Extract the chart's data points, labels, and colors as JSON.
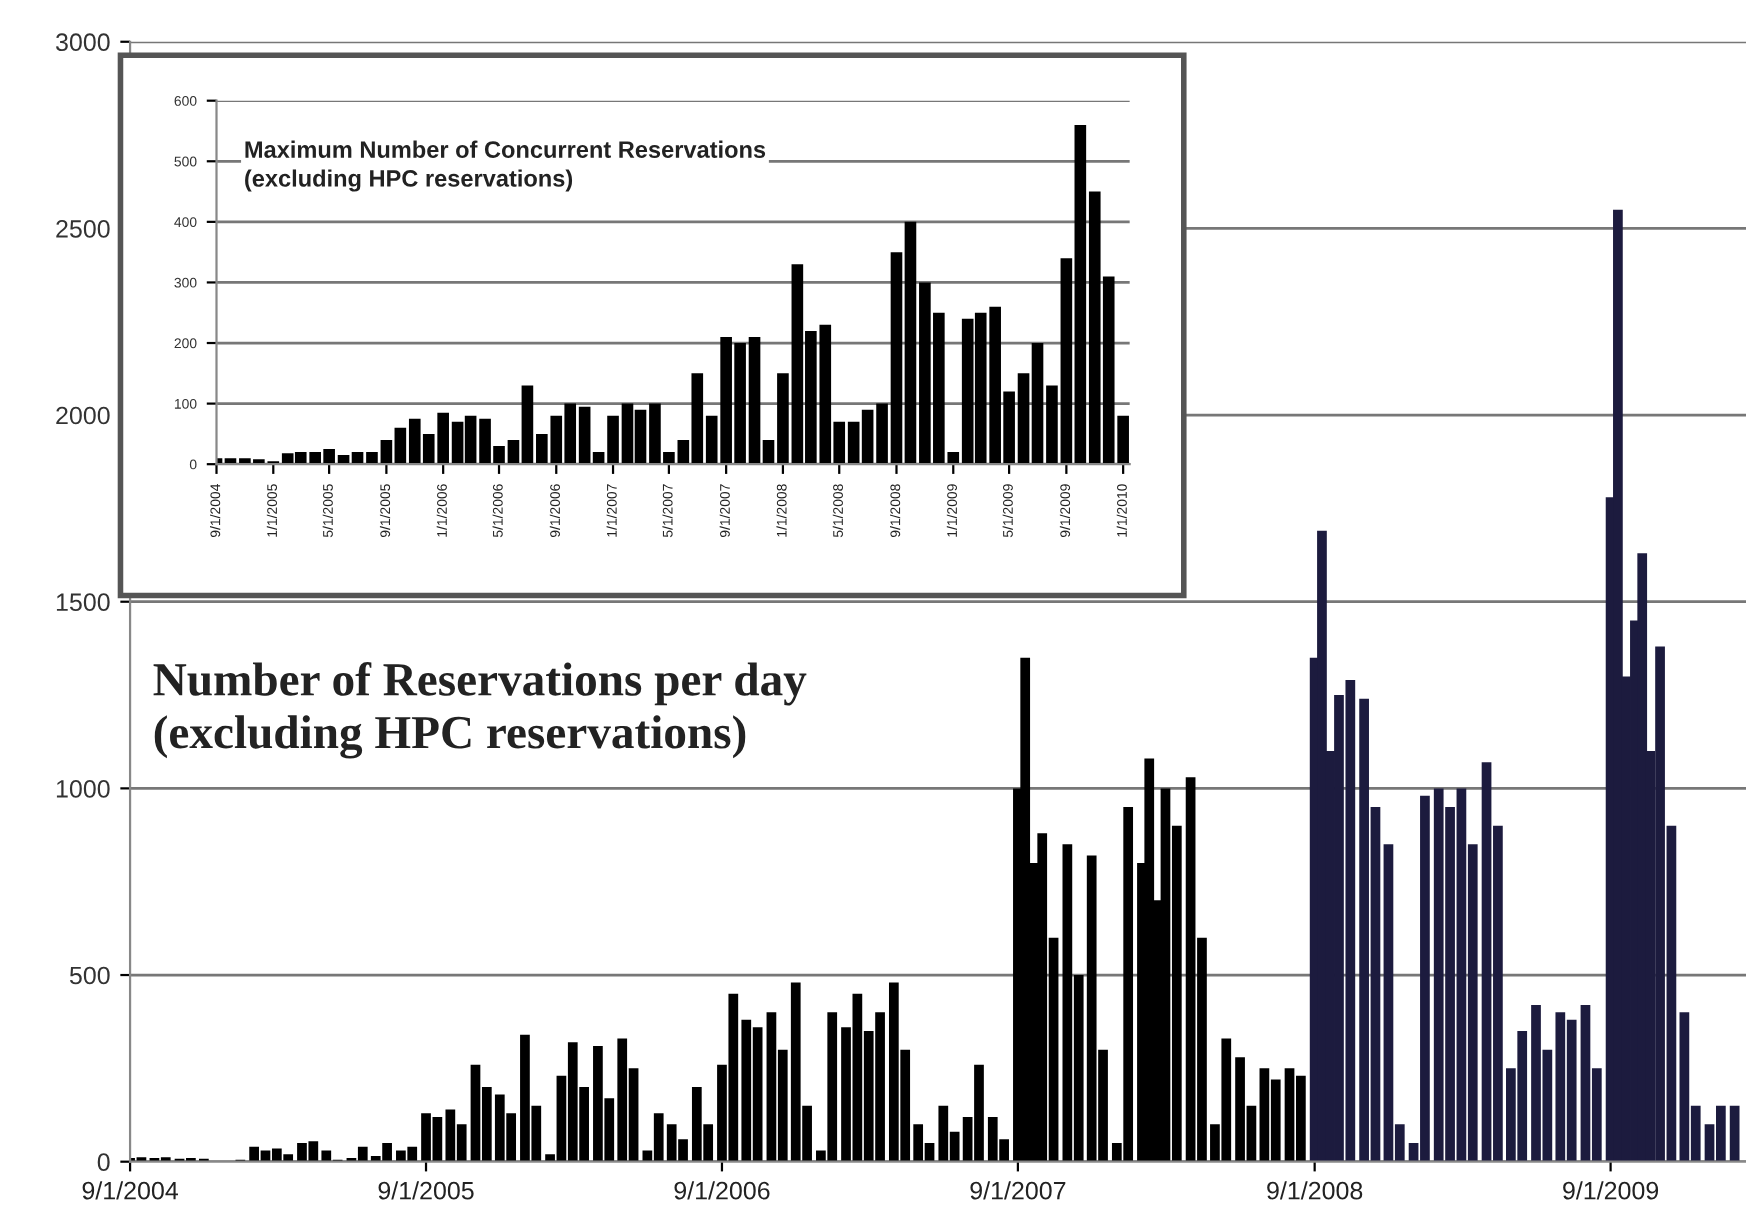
{
  "chart_data": [
    {
      "type": "bar",
      "title": "Number of Reservations per day\n(excluding HPC reservations)",
      "grid": "y",
      "legend": false,
      "xlim": [
        "2004-09-01",
        "2010-02-15"
      ],
      "ylim": [
        0,
        3000
      ],
      "yticks": [
        0,
        500,
        1000,
        1500,
        2000,
        2500,
        3000
      ],
      "xticks": [
        {
          "value": "2004-09-01",
          "label": "9/1/2004"
        },
        {
          "value": "2005-09-01",
          "label": "9/1/2005"
        },
        {
          "value": "2006-09-01",
          "label": "9/1/2006"
        },
        {
          "value": "2007-09-01",
          "label": "9/1/2007"
        },
        {
          "value": "2008-09-01",
          "label": "9/1/2008"
        },
        {
          "value": "2009-09-01",
          "label": "9/1/2009"
        }
      ],
      "series": [
        {
          "color": "#000000",
          "x": [
            "2004-09-01",
            "2004-09-15",
            "2004-10-01",
            "2004-10-15",
            "2004-11-01",
            "2004-11-15",
            "2004-12-01",
            "2004-12-15",
            "2005-01-01",
            "2005-01-15",
            "2005-02-01",
            "2005-02-15",
            "2005-03-01",
            "2005-03-15",
            "2005-04-01",
            "2005-04-15",
            "2005-05-01",
            "2005-05-15",
            "2005-06-01",
            "2005-06-15",
            "2005-07-01",
            "2005-07-15",
            "2005-08-01",
            "2005-08-15",
            "2005-09-01",
            "2005-09-15",
            "2005-10-01",
            "2005-10-15",
            "2005-11-01",
            "2005-11-15",
            "2005-12-01",
            "2005-12-15",
            "2006-01-01",
            "2006-01-15",
            "2006-02-01",
            "2006-02-15",
            "2006-03-01",
            "2006-03-15",
            "2006-04-01",
            "2006-04-15",
            "2006-05-01",
            "2006-05-15",
            "2006-06-01",
            "2006-06-15",
            "2006-07-01",
            "2006-07-15",
            "2006-08-01",
            "2006-08-15",
            "2006-09-01",
            "2006-09-15",
            "2006-10-01",
            "2006-10-15",
            "2006-11-01",
            "2006-11-15",
            "2006-12-01",
            "2006-12-15",
            "2007-01-01",
            "2007-01-15",
            "2007-02-01",
            "2007-02-15",
            "2007-03-01",
            "2007-03-15",
            "2007-04-01",
            "2007-04-15",
            "2007-05-01",
            "2007-05-15",
            "2007-06-01",
            "2007-06-15",
            "2007-07-01",
            "2007-07-15",
            "2007-08-01",
            "2007-08-15",
            "2007-09-01",
            "2007-09-10",
            "2007-09-20",
            "2007-10-01",
            "2007-10-15",
            "2007-11-01",
            "2007-11-15",
            "2007-12-01",
            "2007-12-15",
            "2008-01-01",
            "2008-01-15",
            "2008-02-01",
            "2008-02-10",
            "2008-02-20",
            "2008-03-01",
            "2008-03-15",
            "2008-04-01",
            "2008-04-15",
            "2008-05-01",
            "2008-05-15",
            "2008-06-01",
            "2008-06-15",
            "2008-07-01",
            "2008-07-15",
            "2008-08-01",
            "2008-08-15"
          ],
          "values": [
            10,
            12,
            10,
            12,
            8,
            10,
            8,
            0,
            0,
            5,
            40,
            30,
            35,
            20,
            50,
            55,
            30,
            5,
            10,
            40,
            15,
            50,
            30,
            40,
            130,
            120,
            140,
            100,
            260,
            200,
            180,
            130,
            340,
            150,
            20,
            230,
            320,
            200,
            310,
            170,
            330,
            250,
            30,
            130,
            100,
            60,
            200,
            100,
            260,
            450,
            380,
            360,
            400,
            300,
            480,
            150,
            30,
            400,
            360,
            450,
            350,
            400,
            480,
            300,
            100,
            50,
            150,
            80,
            120,
            260,
            120,
            60,
            1000,
            1350,
            800,
            880,
            600,
            850,
            500,
            820,
            300,
            50,
            950,
            800,
            1080,
            700,
            1000,
            900,
            1030,
            600,
            100,
            330,
            280,
            150,
            250,
            220,
            250,
            230
          ]
        },
        {
          "color": "#1c1b3e",
          "x": [
            "2008-09-01",
            "2008-09-10",
            "2008-09-20",
            "2008-10-01",
            "2008-10-15",
            "2008-11-01",
            "2008-11-15",
            "2008-12-01",
            "2008-12-15",
            "2009-01-01",
            "2009-01-15",
            "2009-02-01",
            "2009-02-15",
            "2009-03-01",
            "2009-03-15",
            "2009-04-01",
            "2009-04-15",
            "2009-05-01",
            "2009-05-15",
            "2009-06-01",
            "2009-06-15",
            "2009-07-01",
            "2009-07-15",
            "2009-08-01",
            "2009-08-15",
            "2009-09-01",
            "2009-09-10",
            "2009-09-20",
            "2009-10-01",
            "2009-10-10",
            "2009-10-20",
            "2009-11-01",
            "2009-11-15",
            "2009-12-01",
            "2009-12-15",
            "2010-01-01",
            "2010-01-15",
            "2010-02-01"
          ],
          "values": [
            1350,
            1690,
            1100,
            1250,
            1290,
            1240,
            950,
            850,
            100,
            50,
            980,
            1000,
            950,
            1000,
            850,
            1070,
            900,
            250,
            350,
            420,
            300,
            400,
            380,
            420,
            250,
            1780,
            2550,
            1300,
            1450,
            1630,
            1100,
            1380,
            900,
            400,
            150,
            100,
            150,
            150
          ]
        }
      ]
    },
    {
      "type": "bar",
      "title": "Maximum Number of Concurrent Reservations\n(excluding HPC reservations)",
      "grid": "y",
      "legend": false,
      "xlim": [
        "2004-09-01",
        "2010-01-15"
      ],
      "ylim": [
        0,
        600
      ],
      "yticks": [
        0,
        100,
        200,
        300,
        400,
        500,
        600
      ],
      "xticks": [
        {
          "value": "2004-09-01",
          "label": "9/1/2004"
        },
        {
          "value": "2005-01-01",
          "label": "1/1/2005"
        },
        {
          "value": "2005-05-01",
          "label": "5/1/2005"
        },
        {
          "value": "2005-09-01",
          "label": "9/1/2005"
        },
        {
          "value": "2006-01-01",
          "label": "1/1/2006"
        },
        {
          "value": "2006-05-01",
          "label": "5/1/2006"
        },
        {
          "value": "2006-09-01",
          "label": "9/1/2006"
        },
        {
          "value": "2007-01-01",
          "label": "1/1/2007"
        },
        {
          "value": "2007-05-01",
          "label": "5/1/2007"
        },
        {
          "value": "2007-09-01",
          "label": "9/1/2007"
        },
        {
          "value": "2008-01-01",
          "label": "1/1/2008"
        },
        {
          "value": "2008-05-01",
          "label": "5/1/2008"
        },
        {
          "value": "2008-09-01",
          "label": "9/1/2008"
        },
        {
          "value": "2009-01-01",
          "label": "1/1/2009"
        },
        {
          "value": "2009-05-01",
          "label": "5/1/2009"
        },
        {
          "value": "2009-09-01",
          "label": "9/1/2009"
        },
        {
          "value": "2010-01-01",
          "label": "1/1/2010"
        }
      ],
      "series": [
        {
          "color": "#000000",
          "x": [
            "2004-09-01",
            "2004-10-01",
            "2004-11-01",
            "2004-12-01",
            "2005-01-01",
            "2005-02-01",
            "2005-03-01",
            "2005-04-01",
            "2005-05-01",
            "2005-06-01",
            "2005-07-01",
            "2005-08-01",
            "2005-09-01",
            "2005-10-01",
            "2005-11-01",
            "2005-12-01",
            "2006-01-01",
            "2006-02-01",
            "2006-03-01",
            "2006-04-01",
            "2006-05-01",
            "2006-06-01",
            "2006-07-01",
            "2006-08-01",
            "2006-09-01",
            "2006-10-01",
            "2006-11-01",
            "2006-12-01",
            "2007-01-01",
            "2007-02-01",
            "2007-03-01",
            "2007-04-01",
            "2007-05-01",
            "2007-06-01",
            "2007-07-01",
            "2007-08-01",
            "2007-09-01",
            "2007-10-01",
            "2007-11-01",
            "2007-12-01",
            "2008-01-01",
            "2008-02-01",
            "2008-03-01",
            "2008-04-01",
            "2008-05-01",
            "2008-06-01",
            "2008-07-01",
            "2008-08-01",
            "2008-09-01",
            "2008-10-01",
            "2008-11-01",
            "2008-12-01",
            "2009-01-01",
            "2009-02-01",
            "2009-03-01",
            "2009-04-01",
            "2009-05-01",
            "2009-06-01",
            "2009-07-01",
            "2009-08-01",
            "2009-09-01",
            "2009-10-01",
            "2009-11-01",
            "2009-12-01",
            "2010-01-01"
          ],
          "values": [
            10,
            10,
            10,
            8,
            5,
            18,
            20,
            20,
            25,
            15,
            20,
            20,
            40,
            60,
            75,
            50,
            85,
            70,
            80,
            75,
            30,
            40,
            130,
            50,
            80,
            100,
            95,
            20,
            80,
            100,
            90,
            100,
            20,
            40,
            150,
            80,
            210,
            200,
            210,
            40,
            150,
            330,
            220,
            230,
            70,
            70,
            90,
            100,
            350,
            400,
            300,
            250,
            20,
            240,
            250,
            260,
            120,
            150,
            200,
            130,
            340,
            560,
            450,
            310,
            80
          ]
        }
      ]
    }
  ]
}
